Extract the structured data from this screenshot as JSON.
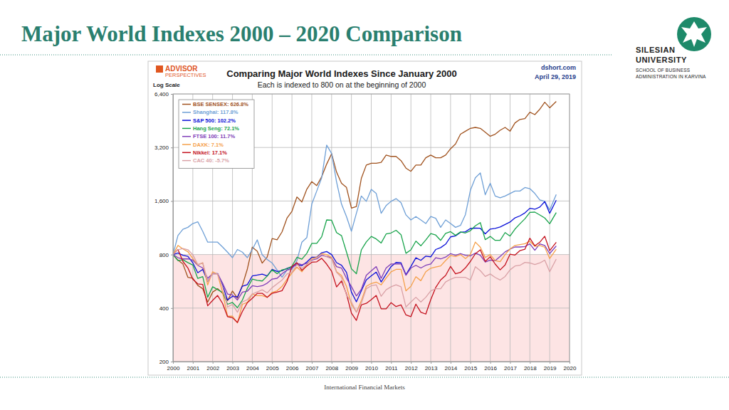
{
  "slide": {
    "title": "Major World Indexes 2000 – 2020 Comparison",
    "logo": [
      "SILESIAN",
      "UNIVERSITY",
      "SCHOOL OF BUSINESS",
      "ADMINISTRATION IN KARVINA"
    ],
    "footer": "International Financial Markets"
  },
  "chart_data": {
    "type": "line",
    "title": "Comparing Major World Indexes Since January 2000",
    "subtitle": "Each is indexed to 800 on at the beginning of 2000",
    "annotations": [
      "ADVISOR",
      "PERSPECTIVES",
      "Log Scale",
      "dshort.com",
      "April 29, 2019"
    ],
    "log": "y",
    "grid": true,
    "legend": "top-left",
    "baseline": 800,
    "xlim": [
      2000,
      2020
    ],
    "xticks": [
      2000,
      2001,
      2002,
      2003,
      2004,
      2005,
      2006,
      2007,
      2008,
      2009,
      2010,
      2011,
      2012,
      2013,
      2014,
      2015,
      2016,
      2017,
      2018,
      2019,
      2020
    ],
    "ylim": [
      200,
      6400
    ],
    "yticks": [
      200,
      400,
      800,
      {
        "value": 1600,
        "label": "1,600"
      },
      {
        "value": 3200,
        "label": "3,200"
      },
      {
        "value": 6400,
        "label": "6,400"
      }
    ],
    "x": [
      2000,
      2000.25,
      2000.5,
      2000.75,
      2001,
      2001.25,
      2001.5,
      2001.75,
      2002,
      2002.25,
      2002.5,
      2002.75,
      2003,
      2003.25,
      2003.5,
      2003.75,
      2004,
      2004.25,
      2004.5,
      2004.75,
      2005,
      2005.25,
      2005.5,
      2005.75,
      2006,
      2006.25,
      2006.5,
      2006.75,
      2007,
      2007.25,
      2007.5,
      2007.75,
      2008,
      2008.25,
      2008.5,
      2008.75,
      2009,
      2009.25,
      2009.5,
      2009.75,
      2010,
      2010.25,
      2010.5,
      2010.75,
      2011,
      2011.25,
      2011.5,
      2011.75,
      2012,
      2012.25,
      2012.5,
      2012.75,
      2013,
      2013.25,
      2013.5,
      2013.75,
      2014,
      2014.25,
      2014.5,
      2014.75,
      2015,
      2015.25,
      2015.5,
      2015.75,
      2016,
      2016.25,
      2016.5,
      2016.75,
      2017,
      2017.25,
      2017.5,
      2017.75,
      2018,
      2018.25,
      2018.5,
      2018.75,
      2019,
      2019.33
    ],
    "series": [
      {
        "name": "BSE SENSEX: 626.8%",
        "color": "#a0521e",
        "values": [
          800,
          745,
          708,
          596,
          589,
          537,
          514,
          432,
          492,
          514,
          485,
          440,
          499,
          455,
          537,
          663,
          880,
          835,
          716,
          775,
          984,
          969,
          1073,
          1282,
          1401,
          1685,
          1580,
          1864,
          2057,
          1953,
          2192,
          2579,
          2952,
          2326,
          2013,
          1908,
          1461,
          1491,
          2147,
          2549,
          2609,
          2609,
          2639,
          2900,
          2850,
          2850,
          2700,
          2450,
          2350,
          2550,
          2550,
          2800,
          2900,
          2800,
          2800,
          2900,
          3150,
          3350,
          3800,
          3950,
          4100,
          4150,
          4100,
          3900,
          3700,
          3800,
          4000,
          4150,
          3950,
          4400,
          4600,
          4650,
          5050,
          4900,
          5250,
          5750,
          5350,
          5814
        ]
      },
      {
        "name": "Shanghai: 117.8%",
        "color": "#6e9fd6",
        "values": [
          800,
          1024,
          1110,
          1138,
          1195,
          1223,
          1081,
          939,
          939,
          939,
          882,
          825,
          768,
          854,
          825,
          768,
          854,
          967,
          797,
          751,
          717,
          654,
          597,
          654,
          660,
          740,
          939,
          996,
          1536,
          1821,
          2162,
          3300,
          2959,
          2048,
          1536,
          1309,
          1081,
          1366,
          1707,
          1593,
          1861,
          1764,
          1366,
          1508,
          1593,
          1650,
          1565,
          1337,
          1252,
          1309,
          1252,
          1195,
          1309,
          1280,
          1138,
          1252,
          1195,
          1138,
          1166,
          1343,
          1838,
          2162,
          2304,
          1735,
          2014,
          1707,
          1667,
          1707,
          1764,
          1821,
          1821,
          1906,
          1878,
          1764,
          1622,
          1593,
          1423,
          1742
        ]
      },
      {
        "name": "S&P 500: 102.2%",
        "color": "#0a10d8",
        "values": [
          800,
          817,
          792,
          782,
          719,
          632,
          660,
          566,
          625,
          625,
          539,
          444,
          466,
          462,
          531,
          542,
          606,
          613,
          621,
          607,
          660,
          643,
          649,
          669,
          680,
          705,
          692,
          727,
          772,
          773,
          819,
          832,
          800,
          720,
          697,
          635,
          492,
          434,
          500,
          576,
          607,
          637,
          561,
          621,
          685,
          722,
          719,
          616,
          685,
          767,
          742,
          784,
          777,
          854,
          875,
          915,
          1006,
          1019,
          1067,
          1074,
          1121,
          1126,
          1124,
          1046,
          1113,
          1122,
          1143,
          1181,
          1219,
          1286,
          1320,
          1372,
          1456,
          1438,
          1480,
          1587,
          1365,
          1618
        ]
      },
      {
        "name": "Hang Seng: 72.1%",
        "color": "#17a34a",
        "values": [
          800,
          739,
          748,
          721,
          698,
          587,
          601,
          460,
          527,
          508,
          490,
          420,
          430,
          402,
          444,
          517,
          582,
          573,
          568,
          605,
          656,
          624,
          656,
          665,
          688,
          772,
          753,
          813,
          924,
          924,
          1007,
          1252,
          1247,
          1063,
          1021,
          827,
          665,
          624,
          850,
          942,
          1012,
          979,
          929,
          1044,
          1058,
          1095,
          1035,
          813,
          850,
          952,
          896,
          966,
          1049,
          1030,
          961,
          1053,
          1076,
          1026,
          1072,
          1058,
          1090,
          1160,
          1210,
          970,
          1012,
          961,
          961,
          1063,
          1016,
          1113,
          1192,
          1271,
          1381,
          1386,
          1335,
          1284,
          1192,
          1377
        ]
      },
      {
        "name": "FTSE 100: 11.7%",
        "color": "#7d3cb8",
        "values": [
          800,
          768,
          756,
          756,
          744,
          696,
          672,
          588,
          624,
          624,
          552,
          480,
          474,
          444,
          492,
          498,
          534,
          528,
          534,
          552,
          582,
          588,
          624,
          654,
          672,
          714,
          702,
          714,
          744,
          756,
          792,
          780,
          768,
          684,
          672,
          588,
          528,
          468,
          510,
          612,
          648,
          684,
          588,
          672,
          708,
          708,
          708,
          612,
          672,
          696,
          672,
          696,
          708,
          768,
          756,
          774,
          810,
          792,
          810,
          792,
          786,
          816,
          792,
          726,
          744,
          738,
          780,
          828,
          858,
          882,
          882,
          888,
          918,
          846,
          918,
          900,
          810,
          894
        ]
      },
      {
        "name": "DAXK: 7.1%",
        "color": "#f5a04a",
        "values": [
          800,
          900,
          860,
          830,
          760,
          700,
          720,
          540,
          640,
          620,
          490,
          360,
          360,
          330,
          420,
          430,
          480,
          470,
          470,
          460,
          490,
          500,
          530,
          580,
          630,
          680,
          640,
          700,
          760,
          770,
          810,
          800,
          770,
          640,
          610,
          530,
          420,
          380,
          440,
          530,
          550,
          560,
          540,
          590,
          640,
          660,
          660,
          500,
          530,
          600,
          570,
          640,
          670,
          680,
          690,
          740,
          790,
          780,
          800,
          760,
          800,
          940,
          880,
          770,
          800,
          740,
          730,
          800,
          860,
          900,
          910,
          920,
          950,
          890,
          900,
          880,
          760,
          857
        ]
      },
      {
        "name": "Nikkei: 17.1%",
        "color": "#c4101c",
        "values": [
          800,
          854,
          732,
          673,
          581,
          547,
          543,
          412,
          442,
          471,
          425,
          358,
          353,
          332,
          383,
          429,
          454,
          484,
          484,
          459,
          484,
          492,
          501,
          564,
          686,
          720,
          652,
          690,
          724,
          728,
          762,
          707,
          644,
          526,
          568,
          480,
          375,
          341,
          417,
          425,
          446,
          471,
          396,
          396,
          429,
          408,
          417,
          366,
          358,
          421,
          379,
          370,
          446,
          522,
          576,
          610,
          686,
          623,
          635,
          673,
          732,
          808,
          850,
          732,
          778,
          707,
          656,
          699,
          804,
          795,
          842,
          858,
          989,
          896,
          938,
          1014,
          842,
          937
        ]
      },
      {
        "name": "CAC 40: -5.7%",
        "color": "#d9a1a6",
        "values": [
          800,
          852,
          865,
          852,
          798,
          703,
          717,
          568,
          622,
          622,
          527,
          406,
          419,
          379,
          433,
          446,
          480,
          493,
          507,
          487,
          521,
          548,
          575,
          622,
          635,
          703,
          669,
          703,
          750,
          764,
          804,
          777,
          757,
          635,
          595,
          473,
          433,
          379,
          426,
          514,
          534,
          541,
          466,
          507,
          527,
          541,
          527,
          406,
          433,
          460,
          433,
          460,
          500,
          514,
          514,
          561,
          581,
          595,
          595,
          595,
          575,
          683,
          649,
          602,
          622,
          595,
          575,
          602,
          656,
          690,
          696,
          723,
          717,
          703,
          717,
          744,
          640,
          754
        ]
      }
    ]
  }
}
